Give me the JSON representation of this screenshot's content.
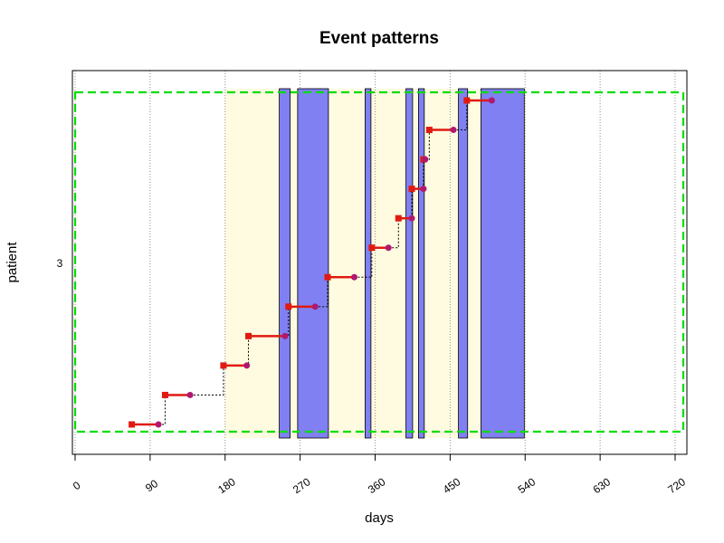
{
  "chart_data": {
    "type": "scatter",
    "title": "Event patterns",
    "xlabel": "days",
    "ylabel": "patient",
    "xlim": [
      0,
      720
    ],
    "x_ticks": [
      0,
      90,
      180,
      270,
      360,
      450,
      540,
      630,
      720
    ],
    "y_tick_labels": [
      "3"
    ],
    "grid": "vertical dotted gridlines at x ticks",
    "colors": {
      "event_box": "#8080f2",
      "episode_band": "#fffbe0",
      "start_marker": "#e01a10",
      "end_marker": "#b01870",
      "connector": "#000000",
      "frame": "#00dd00"
    },
    "shaded_periods": [
      {
        "start": 180,
        "end": 540
      }
    ],
    "event_boxes": [
      {
        "start": 245,
        "end": 258
      },
      {
        "start": 267,
        "end": 304
      },
      {
        "start": 348,
        "end": 355
      },
      {
        "start": 397,
        "end": 405
      },
      {
        "start": 412,
        "end": 419
      },
      {
        "start": 460,
        "end": 471
      },
      {
        "start": 487,
        "end": 539
      }
    ],
    "segments": [
      {
        "start": 68,
        "end": 100
      },
      {
        "start": 108,
        "end": 138
      },
      {
        "start": 178,
        "end": 206
      },
      {
        "start": 208,
        "end": 252
      },
      {
        "start": 256,
        "end": 288
      },
      {
        "start": 303,
        "end": 335
      },
      {
        "start": 356,
        "end": 376
      },
      {
        "start": 388,
        "end": 404
      },
      {
        "start": 404,
        "end": 418
      },
      {
        "start": 418,
        "end": 420
      },
      {
        "start": 425,
        "end": 454
      },
      {
        "start": 470,
        "end": 500
      }
    ]
  }
}
